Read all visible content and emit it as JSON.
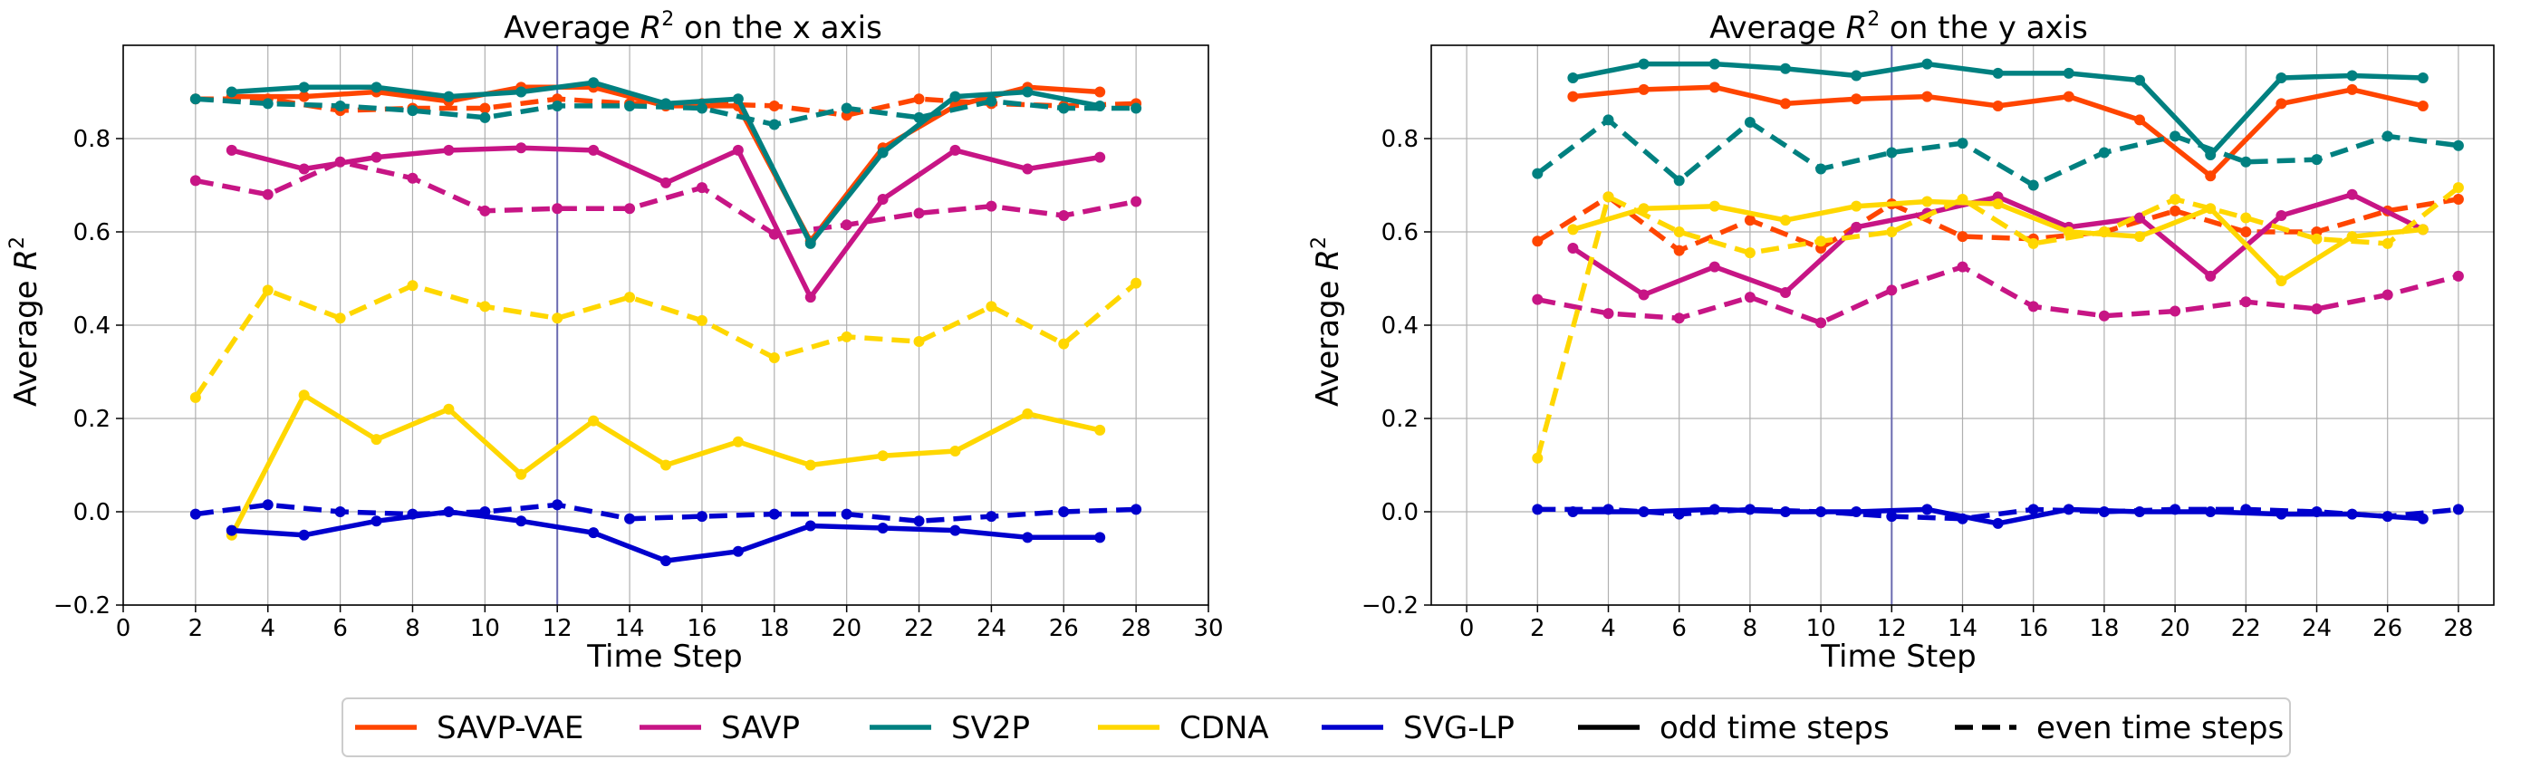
{
  "chart_data": [
    {
      "type": "line",
      "title": "Average R² on the x axis",
      "title_prefix": "Average ",
      "title_r": "R",
      "title_sup": "2",
      "title_suffix": " on the x axis",
      "xlabel": "Time Step",
      "ylabel": "Average R²",
      "ylabel_prefix": "Average ",
      "ylabel_r": "R",
      "ylabel_sup": "2",
      "xlim": [
        0,
        30
      ],
      "ylim": [
        -0.2,
        1.0
      ],
      "xticks": [
        "0",
        "2",
        "4",
        "6",
        "8",
        "10",
        "12",
        "14",
        "16",
        "18",
        "20",
        "22",
        "24",
        "26",
        "28",
        "30"
      ],
      "yticks": [
        "−0.2",
        "0.0",
        "0.2",
        "0.4",
        "0.6",
        "0.8"
      ],
      "grid": true,
      "vline_x": 12,
      "series": [
        {
          "name": "SAVP-VAE",
          "style": "odd",
          "x": [
            3,
            5,
            7,
            9,
            11,
            13,
            15,
            17,
            19,
            21,
            23,
            25,
            27
          ],
          "y": [
            0.89,
            0.89,
            0.9,
            0.88,
            0.91,
            0.91,
            0.87,
            0.87,
            0.58,
            0.78,
            0.87,
            0.91,
            0.9
          ]
        },
        {
          "name": "SAVP-VAE",
          "style": "even",
          "x": [
            2,
            4,
            6,
            8,
            10,
            12,
            14,
            16,
            18,
            20,
            22,
            24,
            26,
            28
          ],
          "y": [
            0.885,
            0.885,
            0.86,
            0.865,
            0.865,
            0.885,
            0.875,
            0.875,
            0.87,
            0.85,
            0.885,
            0.875,
            0.87,
            0.875
          ]
        },
        {
          "name": "SAVP",
          "style": "odd",
          "x": [
            3,
            5,
            7,
            9,
            11,
            13,
            15,
            17,
            19,
            21,
            23,
            25,
            27
          ],
          "y": [
            0.775,
            0.735,
            0.76,
            0.775,
            0.78,
            0.775,
            0.705,
            0.775,
            0.46,
            0.67,
            0.775,
            0.735,
            0.76
          ]
        },
        {
          "name": "SAVP",
          "style": "even",
          "x": [
            2,
            4,
            6,
            8,
            10,
            12,
            14,
            16,
            18,
            20,
            22,
            24,
            26,
            28
          ],
          "y": [
            0.71,
            0.68,
            0.75,
            0.715,
            0.645,
            0.65,
            0.65,
            0.695,
            0.595,
            0.615,
            0.64,
            0.655,
            0.635,
            0.665
          ]
        },
        {
          "name": "SV2P",
          "style": "odd",
          "x": [
            3,
            5,
            7,
            9,
            11,
            13,
            15,
            17,
            19,
            21,
            23,
            25,
            27
          ],
          "y": [
            0.9,
            0.91,
            0.91,
            0.89,
            0.9,
            0.92,
            0.875,
            0.885,
            0.575,
            0.77,
            0.89,
            0.9,
            0.87
          ]
        },
        {
          "name": "SV2P",
          "style": "even",
          "x": [
            2,
            4,
            6,
            8,
            10,
            12,
            14,
            16,
            18,
            20,
            22,
            24,
            26,
            28
          ],
          "y": [
            0.885,
            0.875,
            0.87,
            0.86,
            0.845,
            0.87,
            0.87,
            0.865,
            0.83,
            0.865,
            0.845,
            0.88,
            0.865,
            0.865
          ]
        },
        {
          "name": "CDNA",
          "style": "odd",
          "x": [
            3,
            5,
            7,
            9,
            11,
            13,
            15,
            17,
            19,
            21,
            23,
            25,
            27
          ],
          "y": [
            -0.05,
            0.25,
            0.155,
            0.22,
            0.08,
            0.195,
            0.1,
            0.15,
            0.1,
            0.12,
            0.13,
            0.21,
            0.175
          ]
        },
        {
          "name": "CDNA",
          "style": "even",
          "x": [
            2,
            4,
            6,
            8,
            10,
            12,
            14,
            16,
            18,
            20,
            22,
            24,
            26,
            28
          ],
          "y": [
            0.245,
            0.475,
            0.415,
            0.485,
            0.44,
            0.415,
            0.46,
            0.41,
            0.33,
            0.375,
            0.365,
            0.44,
            0.36,
            0.49
          ]
        },
        {
          "name": "SVG-LP",
          "style": "odd",
          "x": [
            3,
            5,
            7,
            9,
            11,
            13,
            15,
            17,
            19,
            21,
            23,
            25,
            27
          ],
          "y": [
            -0.04,
            -0.05,
            -0.02,
            0.0,
            -0.02,
            -0.045,
            -0.105,
            -0.085,
            -0.03,
            -0.035,
            -0.04,
            -0.055,
            -0.055
          ]
        },
        {
          "name": "SVG-LP",
          "style": "even",
          "x": [
            2,
            4,
            6,
            8,
            10,
            12,
            14,
            16,
            18,
            20,
            22,
            24,
            26,
            28
          ],
          "y": [
            -0.005,
            0.015,
            0.0,
            -0.005,
            0.0,
            0.015,
            -0.015,
            -0.01,
            -0.005,
            -0.005,
            -0.02,
            -0.01,
            0.0,
            0.005
          ]
        }
      ]
    },
    {
      "type": "line",
      "title": "Average R² on the y axis",
      "title_prefix": "Average ",
      "title_r": "R",
      "title_sup": "2",
      "title_suffix": " on the y axis",
      "xlabel": "Time Step",
      "ylabel": "Average R²",
      "ylabel_prefix": "Average ",
      "ylabel_r": "R",
      "ylabel_sup": "2",
      "xlim": [
        -1,
        29
      ],
      "ylim": [
        -0.2,
        1.0
      ],
      "xticks": [
        "0",
        "2",
        "4",
        "6",
        "8",
        "10",
        "12",
        "14",
        "16",
        "18",
        "20",
        "22",
        "24",
        "26",
        "28"
      ],
      "yticks": [
        "−0.2",
        "0.0",
        "0.2",
        "0.4",
        "0.6",
        "0.8"
      ],
      "grid": true,
      "vline_x": 12,
      "series": [
        {
          "name": "SAVP-VAE",
          "style": "odd",
          "x": [
            3,
            5,
            7,
            9,
            11,
            13,
            15,
            17,
            19,
            21,
            23,
            25,
            27
          ],
          "y": [
            0.89,
            0.905,
            0.91,
            0.875,
            0.885,
            0.89,
            0.87,
            0.89,
            0.84,
            0.72,
            0.875,
            0.905,
            0.87
          ]
        },
        {
          "name": "SAVP-VAE",
          "style": "even",
          "x": [
            2,
            4,
            6,
            8,
            10,
            12,
            14,
            16,
            18,
            20,
            22,
            24,
            26,
            28
          ],
          "y": [
            0.58,
            0.675,
            0.56,
            0.625,
            0.565,
            0.66,
            0.59,
            0.585,
            0.6,
            0.645,
            0.6,
            0.6,
            0.645,
            0.67
          ]
        },
        {
          "name": "SAVP",
          "style": "odd",
          "x": [
            3,
            5,
            7,
            9,
            11,
            13,
            15,
            17,
            19,
            21,
            23,
            25,
            27
          ],
          "y": [
            0.565,
            0.465,
            0.525,
            0.47,
            0.61,
            0.64,
            0.675,
            0.61,
            0.63,
            0.505,
            0.635,
            0.68,
            0.605
          ]
        },
        {
          "name": "SAVP",
          "style": "even",
          "x": [
            2,
            4,
            6,
            8,
            10,
            12,
            14,
            16,
            18,
            20,
            22,
            24,
            26,
            28
          ],
          "y": [
            0.455,
            0.425,
            0.415,
            0.46,
            0.405,
            0.475,
            0.525,
            0.44,
            0.42,
            0.43,
            0.45,
            0.435,
            0.465,
            0.505
          ]
        },
        {
          "name": "SV2P",
          "style": "odd",
          "x": [
            3,
            5,
            7,
            9,
            11,
            13,
            15,
            17,
            19,
            21,
            23,
            25,
            27
          ],
          "y": [
            0.93,
            0.96,
            0.96,
            0.95,
            0.935,
            0.96,
            0.94,
            0.94,
            0.925,
            0.765,
            0.93,
            0.935,
            0.93
          ]
        },
        {
          "name": "SV2P",
          "style": "even",
          "x": [
            2,
            4,
            6,
            8,
            10,
            12,
            14,
            16,
            18,
            20,
            22,
            24,
            26,
            28
          ],
          "y": [
            0.725,
            0.84,
            0.71,
            0.835,
            0.735,
            0.77,
            0.79,
            0.7,
            0.77,
            0.805,
            0.75,
            0.755,
            0.805,
            0.785
          ]
        },
        {
          "name": "CDNA",
          "style": "odd",
          "x": [
            3,
            5,
            7,
            9,
            11,
            13,
            15,
            17,
            19,
            21,
            23,
            25,
            27
          ],
          "y": [
            0.605,
            0.65,
            0.655,
            0.625,
            0.655,
            0.665,
            0.66,
            0.6,
            0.59,
            0.65,
            0.495,
            0.59,
            0.605
          ]
        },
        {
          "name": "CDNA",
          "style": "even",
          "x": [
            2,
            4,
            6,
            8,
            10,
            12,
            14,
            16,
            18,
            20,
            22,
            24,
            26,
            28
          ],
          "y": [
            0.115,
            0.675,
            0.6,
            0.555,
            0.58,
            0.6,
            0.67,
            0.575,
            0.6,
            0.67,
            0.63,
            0.585,
            0.575,
            0.695
          ]
        },
        {
          "name": "SVG-LP",
          "style": "odd",
          "x": [
            3,
            5,
            7,
            9,
            11,
            13,
            15,
            17,
            19,
            21,
            23,
            25,
            27
          ],
          "y": [
            0.0,
            0.0,
            0.005,
            0.0,
            0.0,
            0.005,
            -0.025,
            0.005,
            0.0,
            0.0,
            -0.005,
            -0.005,
            -0.015
          ]
        },
        {
          "name": "SVG-LP",
          "style": "even",
          "x": [
            2,
            4,
            6,
            8,
            10,
            12,
            14,
            16,
            18,
            20,
            22,
            24,
            26,
            28
          ],
          "y": [
            0.005,
            0.005,
            -0.005,
            0.005,
            0.0,
            -0.01,
            -0.015,
            0.005,
            0.0,
            0.005,
            0.005,
            0.0,
            -0.01,
            0.005
          ]
        }
      ]
    }
  ],
  "colors": {
    "SAVP-VAE": "#ff4500",
    "SAVP": "#c71585",
    "SV2P": "#008080",
    "CDNA": "#ffd700",
    "SVG-LP": "#0000cd",
    "vline": "#6b6bb0",
    "grid": "#b0b0b0"
  },
  "legend": {
    "placement": "bottom-center",
    "entries": [
      {
        "label": "SAVP-VAE",
        "color": "#ff4500",
        "style": "solid"
      },
      {
        "label": "SAVP",
        "color": "#c71585",
        "style": "solid"
      },
      {
        "label": "SV2P",
        "color": "#008080",
        "style": "solid"
      },
      {
        "label": "CDNA",
        "color": "#ffd700",
        "style": "solid"
      },
      {
        "label": "SVG-LP",
        "color": "#0000cd",
        "style": "solid"
      },
      {
        "label": "odd time steps",
        "color": "#000000",
        "style": "solid"
      },
      {
        "label": "even time steps",
        "color": "#000000",
        "style": "dashed"
      }
    ]
  }
}
